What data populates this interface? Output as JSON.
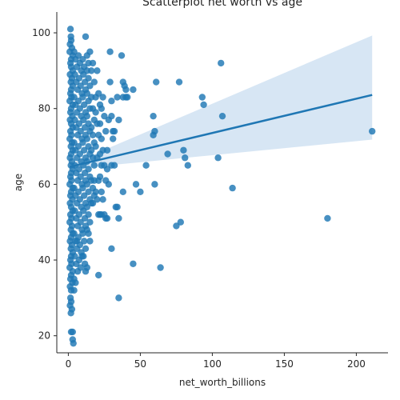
{
  "chart_data": {
    "type": "scatter",
    "title": "Scatterplot net worth vs age",
    "xlabel": "net_worth_billions",
    "ylabel": "age",
    "xlim": [
      -8,
      222
    ],
    "ylim": [
      15.5,
      105.5
    ],
    "x_ticks": [
      "0",
      "50",
      "100",
      "150",
      "200"
    ],
    "x_tick_values": [
      0,
      50,
      100,
      150,
      200
    ],
    "y_ticks": [
      "20",
      "40",
      "60",
      "80",
      "100"
    ],
    "y_tick_values": [
      20,
      40,
      60,
      80,
      100
    ],
    "grid": false,
    "point_color": "#1f77b4",
    "ci_color": "#a6c8e6",
    "regression": {
      "x_range": [
        1,
        211
      ],
      "y_start": 64.6,
      "y_end": 83.6,
      "ci_lower": [
        64.0,
        71.8
      ],
      "ci_upper": [
        65.2,
        99.3
      ]
    },
    "points": [
      [
        1.5,
        101
      ],
      [
        1.8,
        99
      ],
      [
        2.0,
        98
      ],
      [
        1.2,
        97
      ],
      [
        2.5,
        96
      ],
      [
        1.0,
        95
      ],
      [
        3,
        94
      ],
      [
        2,
        93
      ],
      [
        1.5,
        92
      ],
      [
        2,
        91
      ],
      [
        3,
        90
      ],
      [
        1.2,
        89
      ],
      [
        2.5,
        88
      ],
      [
        1.8,
        87
      ],
      [
        3,
        86
      ],
      [
        2,
        85
      ],
      [
        1.5,
        84
      ],
      [
        2.2,
        83
      ],
      [
        1,
        82
      ],
      [
        3,
        81
      ],
      [
        2,
        80
      ],
      [
        1.5,
        79
      ],
      [
        2.8,
        78
      ],
      [
        1.2,
        77
      ],
      [
        2,
        76
      ],
      [
        3,
        75
      ],
      [
        1.5,
        74
      ],
      [
        2.2,
        73
      ],
      [
        1,
        72
      ],
      [
        2.6,
        71
      ],
      [
        1.8,
        70
      ],
      [
        3,
        69
      ],
      [
        2,
        68
      ],
      [
        1.2,
        67
      ],
      [
        2.5,
        66
      ],
      [
        1.8,
        65
      ],
      [
        3,
        64
      ],
      [
        2,
        63
      ],
      [
        1.5,
        62
      ],
      [
        2.2,
        61
      ],
      [
        1,
        60
      ],
      [
        3,
        59
      ],
      [
        2,
        58
      ],
      [
        1.5,
        57
      ],
      [
        2.8,
        56
      ],
      [
        1.2,
        55
      ],
      [
        2,
        54
      ],
      [
        3,
        53
      ],
      [
        1.5,
        52
      ],
      [
        2.2,
        51
      ],
      [
        1,
        50
      ],
      [
        2.6,
        49
      ],
      [
        1.8,
        48
      ],
      [
        3,
        47
      ],
      [
        2,
        46
      ],
      [
        1.2,
        45
      ],
      [
        2.5,
        44
      ],
      [
        1.8,
        43
      ],
      [
        3,
        42
      ],
      [
        2,
        41
      ],
      [
        1.5,
        40
      ],
      [
        2.2,
        39
      ],
      [
        1,
        38
      ],
      [
        3,
        37
      ],
      [
        2,
        36
      ],
      [
        1.5,
        35
      ],
      [
        2.8,
        34
      ],
      [
        1.2,
        33
      ],
      [
        2,
        32
      ],
      [
        1.5,
        30
      ],
      [
        2,
        29
      ],
      [
        1.2,
        28
      ],
      [
        2.5,
        27
      ],
      [
        1.8,
        26
      ],
      [
        2,
        21
      ],
      [
        3,
        21
      ],
      [
        3,
        19
      ],
      [
        3.5,
        18
      ],
      [
        4,
        95
      ],
      [
        5,
        93
      ],
      [
        6,
        91
      ],
      [
        4.5,
        89
      ],
      [
        5.5,
        87
      ],
      [
        6.5,
        85
      ],
      [
        4,
        83
      ],
      [
        5,
        81
      ],
      [
        6,
        79
      ],
      [
        4.5,
        77
      ],
      [
        5.5,
        75
      ],
      [
        6.5,
        73
      ],
      [
        4,
        71
      ],
      [
        5,
        69
      ],
      [
        6,
        67
      ],
      [
        4.5,
        65
      ],
      [
        5.5,
        63
      ],
      [
        6.5,
        61
      ],
      [
        4,
        59
      ],
      [
        5,
        57
      ],
      [
        6,
        55
      ],
      [
        4.5,
        53
      ],
      [
        5.5,
        51
      ],
      [
        6.5,
        49
      ],
      [
        4,
        47
      ],
      [
        5,
        45
      ],
      [
        6,
        43
      ],
      [
        4.5,
        41
      ],
      [
        5.5,
        39
      ],
      [
        6.5,
        37
      ],
      [
        4,
        35
      ],
      [
        5,
        34
      ],
      [
        4,
        32
      ],
      [
        6,
        45
      ],
      [
        7,
        94
      ],
      [
        8,
        92
      ],
      [
        9,
        90
      ],
      [
        7.5,
        88
      ],
      [
        8.5,
        86
      ],
      [
        9.5,
        84
      ],
      [
        7,
        82
      ],
      [
        8,
        80
      ],
      [
        9,
        78
      ],
      [
        7.5,
        76
      ],
      [
        8.5,
        74
      ],
      [
        9.5,
        72
      ],
      [
        7,
        70
      ],
      [
        8,
        68
      ],
      [
        9,
        66
      ],
      [
        7.5,
        64
      ],
      [
        8.5,
        62
      ],
      [
        9.5,
        60
      ],
      [
        7,
        58
      ],
      [
        8,
        56
      ],
      [
        9,
        54
      ],
      [
        7.5,
        52
      ],
      [
        8.5,
        50
      ],
      [
        9.5,
        48
      ],
      [
        7,
        46
      ],
      [
        8,
        44
      ],
      [
        9,
        42
      ],
      [
        7.5,
        40
      ],
      [
        8.5,
        38
      ],
      [
        9.5,
        41
      ],
      [
        10,
        93
      ],
      [
        11,
        91
      ],
      [
        10.5,
        89
      ],
      [
        11.5,
        87
      ],
      [
        12,
        85
      ],
      [
        10,
        83
      ],
      [
        11,
        81
      ],
      [
        12,
        79
      ],
      [
        10.5,
        77
      ],
      [
        11.5,
        75
      ],
      [
        12,
        73
      ],
      [
        10,
        71
      ],
      [
        11,
        69
      ],
      [
        12,
        67
      ],
      [
        10.5,
        65
      ],
      [
        11.5,
        63
      ],
      [
        12,
        61
      ],
      [
        10,
        59
      ],
      [
        11,
        57
      ],
      [
        12,
        55
      ],
      [
        10.5,
        53
      ],
      [
        11.5,
        51
      ],
      [
        12,
        49
      ],
      [
        10,
        47
      ],
      [
        11,
        45
      ],
      [
        12,
        43
      ],
      [
        10.5,
        41
      ],
      [
        11.5,
        39
      ],
      [
        12,
        37
      ],
      [
        12,
        99
      ],
      [
        13,
        94
      ],
      [
        14,
        92
      ],
      [
        15,
        95
      ],
      [
        13,
        90
      ],
      [
        14,
        88
      ],
      [
        15,
        86
      ],
      [
        13,
        84
      ],
      [
        14,
        82
      ],
      [
        15,
        80
      ],
      [
        13,
        78
      ],
      [
        14,
        76
      ],
      [
        15,
        74
      ],
      [
        13,
        72
      ],
      [
        14,
        70
      ],
      [
        15,
        68
      ],
      [
        13,
        66
      ],
      [
        14,
        64
      ],
      [
        15,
        62
      ],
      [
        13,
        60
      ],
      [
        14,
        58
      ],
      [
        15,
        56
      ],
      [
        13,
        54
      ],
      [
        14,
        52
      ],
      [
        15,
        50
      ],
      [
        13,
        48
      ],
      [
        14,
        47
      ],
      [
        15,
        45
      ],
      [
        13,
        38
      ],
      [
        16,
        90
      ],
      [
        17,
        92
      ],
      [
        18,
        87
      ],
      [
        16,
        83
      ],
      [
        17,
        80
      ],
      [
        18,
        77
      ],
      [
        16,
        75
      ],
      [
        17,
        73
      ],
      [
        18,
        71
      ],
      [
        16,
        69
      ],
      [
        17,
        67
      ],
      [
        18,
        65
      ],
      [
        16,
        61
      ],
      [
        17,
        59
      ],
      [
        18,
        57
      ],
      [
        16,
        55
      ],
      [
        17,
        55
      ],
      [
        18,
        61
      ],
      [
        19,
        83
      ],
      [
        20,
        90
      ],
      [
        21,
        84
      ],
      [
        19,
        79
      ],
      [
        20,
        76
      ],
      [
        21,
        73
      ],
      [
        19,
        70
      ],
      [
        20,
        67
      ],
      [
        21,
        61
      ],
      [
        19,
        58
      ],
      [
        20,
        56
      ],
      [
        21,
        52
      ],
      [
        21,
        36
      ],
      [
        22,
        81
      ],
      [
        23,
        80
      ],
      [
        22,
        76
      ],
      [
        23,
        72
      ],
      [
        22,
        68
      ],
      [
        23,
        65
      ],
      [
        22,
        62
      ],
      [
        23,
        58
      ],
      [
        22,
        52
      ],
      [
        23,
        52
      ],
      [
        24,
        83
      ],
      [
        25,
        78
      ],
      [
        26,
        74
      ],
      [
        24,
        69
      ],
      [
        25,
        65
      ],
      [
        26,
        61
      ],
      [
        24,
        56
      ],
      [
        25,
        52
      ],
      [
        26,
        51
      ],
      [
        27,
        69
      ],
      [
        28,
        77
      ],
      [
        27,
        64
      ],
      [
        28,
        60
      ],
      [
        27,
        51
      ],
      [
        29,
        95
      ],
      [
        29,
        87
      ],
      [
        30,
        82
      ],
      [
        30,
        78
      ],
      [
        31,
        74
      ],
      [
        31,
        72
      ],
      [
        30,
        65
      ],
      [
        30,
        43
      ],
      [
        32,
        74
      ],
      [
        32,
        65
      ],
      [
        33,
        54
      ],
      [
        34,
        83
      ],
      [
        35,
        77
      ],
      [
        34,
        54
      ],
      [
        35,
        51
      ],
      [
        35,
        30
      ],
      [
        37,
        94
      ],
      [
        38,
        87
      ],
      [
        38,
        83
      ],
      [
        39,
        86
      ],
      [
        38,
        58
      ],
      [
        40,
        83
      ],
      [
        40,
        85
      ],
      [
        41,
        83
      ],
      [
        45,
        85
      ],
      [
        45,
        39
      ],
      [
        47,
        60
      ],
      [
        50,
        58
      ],
      [
        54,
        65
      ],
      [
        59,
        73
      ],
      [
        59,
        78
      ],
      [
        60,
        74
      ],
      [
        60,
        60
      ],
      [
        61,
        87
      ],
      [
        64,
        38
      ],
      [
        69,
        68
      ],
      [
        75,
        49
      ],
      [
        77,
        87
      ],
      [
        78,
        50
      ],
      [
        80,
        69
      ],
      [
        81,
        67
      ],
      [
        83,
        65
      ],
      [
        93,
        83
      ],
      [
        94,
        81
      ],
      [
        104,
        67
      ],
      [
        106,
        92
      ],
      [
        107,
        78
      ],
      [
        114,
        59
      ],
      [
        180,
        51
      ],
      [
        211,
        74
      ]
    ]
  }
}
